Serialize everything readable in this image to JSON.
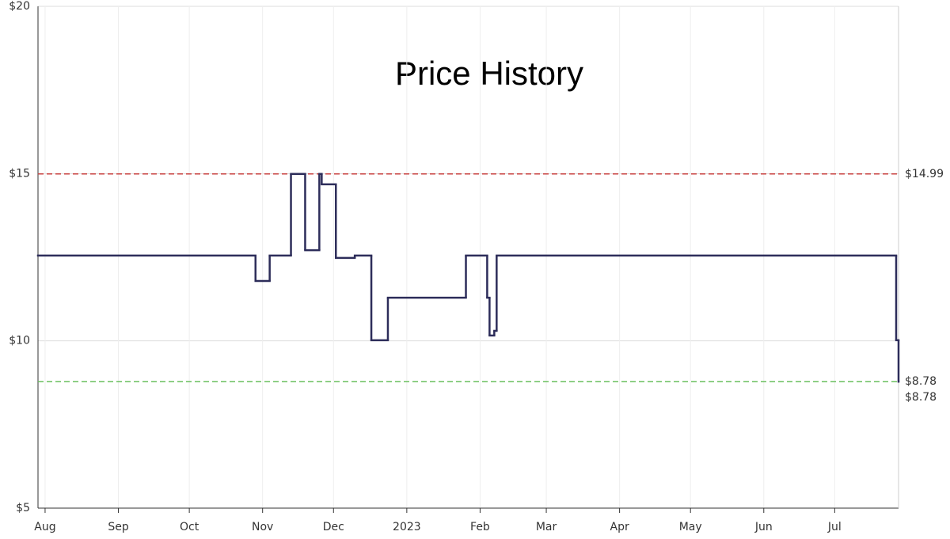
{
  "chart_data": {
    "type": "step",
    "title": "Price History",
    "x": [
      "2022-07-29",
      "2022-10-29",
      "2022-11-04",
      "2022-11-13",
      "2022-11-19",
      "2022-11-25",
      "2022-11-26",
      "2022-12-02",
      "2022-12-10",
      "2022-12-17",
      "2022-12-24",
      "2023-01-26",
      "2023-02-04",
      "2023-02-05",
      "2023-02-07",
      "2023-02-08",
      "2023-07-27",
      "2023-07-28"
    ],
    "series": [
      {
        "name": "Price",
        "color": "#2d2d5a",
        "values": [
          12.55,
          11.79,
          12.55,
          14.99,
          12.71,
          14.99,
          14.68,
          12.48,
          12.55,
          10.02,
          11.29,
          12.55,
          11.29,
          10.16,
          10.3,
          12.55,
          10.02,
          8.78
        ]
      }
    ],
    "xlim": [
      "2022-07-29",
      "2023-07-28"
    ],
    "xticks": [
      {
        "value": "2022-08-01",
        "label": "Aug"
      },
      {
        "value": "2022-09-01",
        "label": "Sep"
      },
      {
        "value": "2022-10-01",
        "label": "Oct"
      },
      {
        "value": "2022-11-01",
        "label": "Nov"
      },
      {
        "value": "2022-12-01",
        "label": "Dec"
      },
      {
        "value": "2023-01-01",
        "label": "2023"
      },
      {
        "value": "2023-02-01",
        "label": "Feb"
      },
      {
        "value": "2023-03-01",
        "label": "Mar"
      },
      {
        "value": "2023-04-01",
        "label": "Apr"
      },
      {
        "value": "2023-05-01",
        "label": "May"
      },
      {
        "value": "2023-06-01",
        "label": "Jun"
      },
      {
        "value": "2023-07-01",
        "label": "Jul"
      }
    ],
    "ylim": [
      5,
      20
    ],
    "yticks": [
      {
        "value": 5,
        "label": "$5"
      },
      {
        "value": 10,
        "label": "$10"
      },
      {
        "value": 15,
        "label": "$15"
      },
      {
        "value": 20,
        "label": "$20"
      }
    ],
    "grid": true,
    "reference_lines": [
      {
        "value": 14.99,
        "label": "$14.99",
        "color": "#c9413f"
      },
      {
        "value": 8.78,
        "label": "$8.78",
        "color": "#6abf5e"
      }
    ],
    "annotations": [
      {
        "value": 8.78,
        "label": "$8.78",
        "color": "#2d2d5a"
      }
    ]
  }
}
